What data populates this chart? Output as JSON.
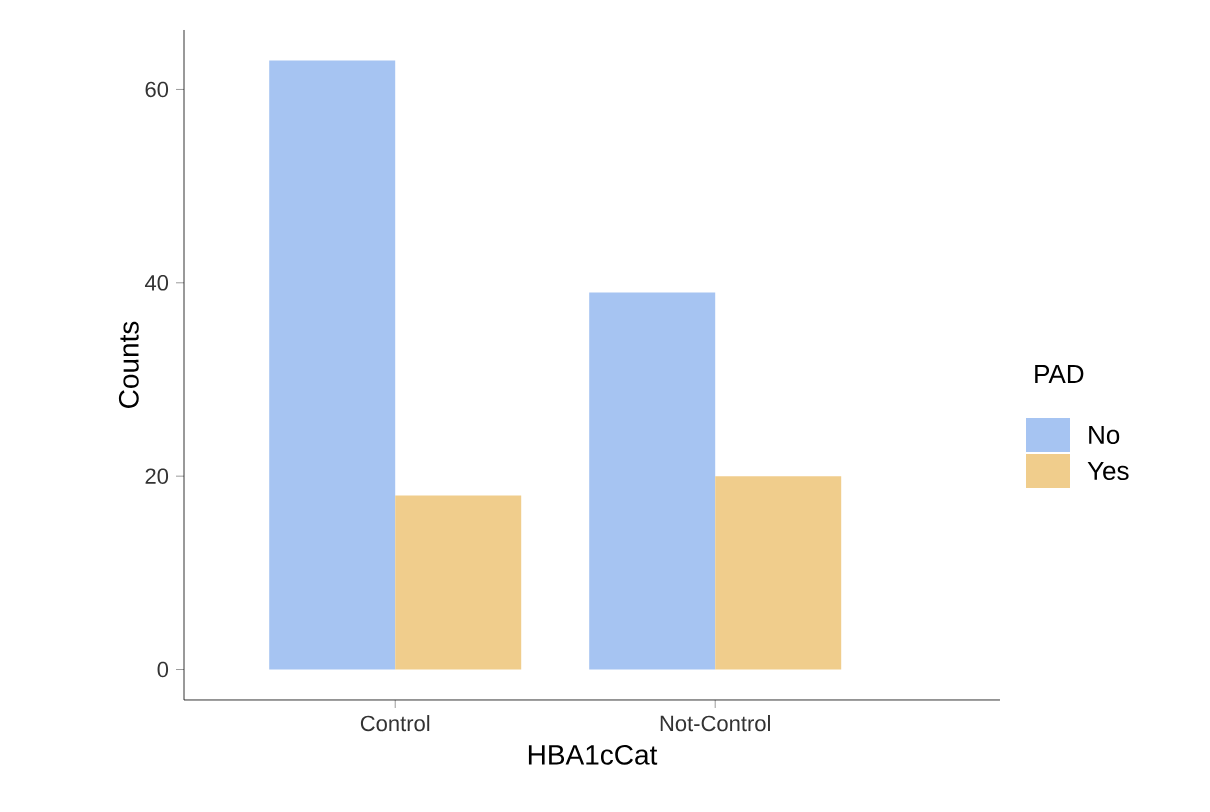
{
  "chart_data": {
    "type": "bar",
    "xlabel": "HBA1cCat",
    "ylabel": "Counts",
    "legend_title": "PAD",
    "categories": [
      "Control",
      "Not-Control"
    ],
    "series": [
      {
        "name": "No",
        "color": "#a6c4f2",
        "values": [
          63,
          39
        ]
      },
      {
        "name": "Yes",
        "color": "#f0cd8c",
        "values": [
          18,
          20
        ]
      }
    ],
    "ylim": [
      -3.15,
      66.15
    ],
    "yticks": [
      0,
      20,
      40,
      60
    ],
    "legend": "right",
    "grid": false
  }
}
